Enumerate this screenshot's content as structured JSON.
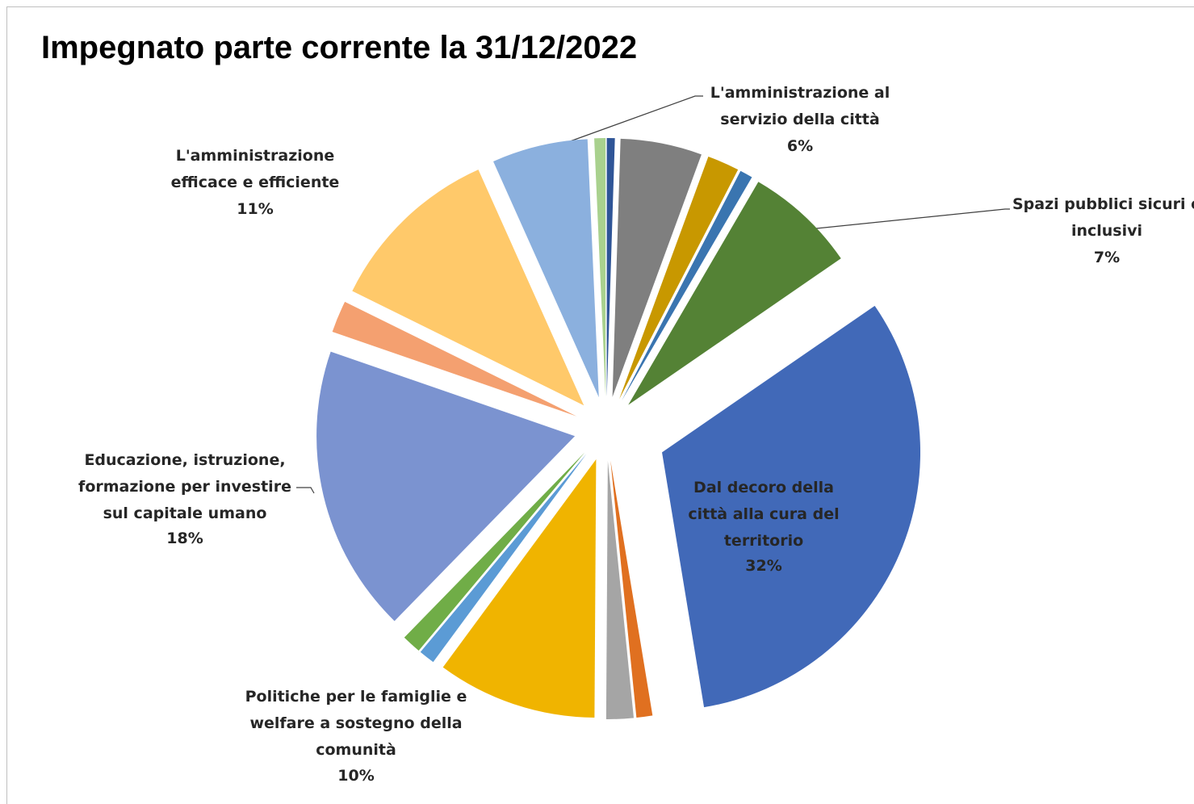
{
  "chart_data": {
    "type": "pie",
    "title": "Impegnato parte corrente la 31/12/2022",
    "categories": [
      null,
      null,
      null,
      null,
      "Spazi pubblici sicuri e inclusivi",
      "Dal decoro della città alla cura del territorio",
      null,
      null,
      "Politiche per le famiglie e welfare a sostegno della comunità",
      null,
      null,
      "Educazione, istruzione, formazione per investire sul capitale umano",
      null,
      "L'amministrazione efficace e efficiente",
      "L'amministrazione al servizio della città",
      null
    ],
    "values": [
      0.5,
      5.1,
      2,
      0.8,
      7,
      32,
      1,
      1.7,
      10,
      1,
      1.2,
      18,
      2,
      11,
      6,
      0.7
    ],
    "value_labels": [
      null,
      null,
      null,
      null,
      "7%",
      "32%",
      null,
      null,
      "10%",
      null,
      null,
      "18%",
      null,
      "11%",
      "6%",
      null
    ],
    "colors": [
      "#2f5597",
      "#7f7f7f",
      "#c89800",
      "#3a75b0",
      "#548235",
      "#4169b8",
      "#e07020",
      "#a5a5a5",
      "#f0b400",
      "#5b9bd5",
      "#70ad47",
      "#7b93d0",
      "#f4a070",
      "#ffc96a",
      "#8bb0de",
      "#a9d18e"
    ]
  }
}
